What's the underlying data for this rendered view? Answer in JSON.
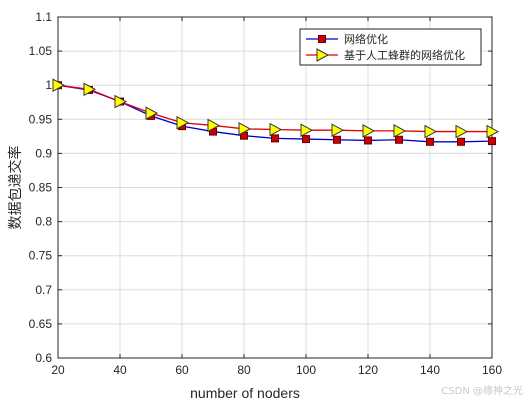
{
  "chart_data": {
    "type": "line",
    "xlabel": "number of noders",
    "ylabel": "数据包递交率",
    "xlim": [
      20,
      160
    ],
    "ylim": [
      0.6,
      1.1
    ],
    "xticks": [
      20,
      40,
      60,
      80,
      100,
      120,
      140,
      160
    ],
    "yticks": [
      0.6,
      0.65,
      0.7,
      0.75,
      0.8,
      0.85,
      0.9,
      0.95,
      1,
      1.05,
      1.1
    ],
    "x": [
      20,
      30,
      40,
      50,
      60,
      70,
      80,
      90,
      100,
      110,
      120,
      130,
      140,
      150,
      160
    ],
    "grid": true,
    "legend_position": "top-right",
    "series": [
      {
        "name": "网络优化",
        "color": "#0000cc",
        "marker": "square",
        "marker_color": "#cc0000",
        "values": [
          1.0,
          0.993,
          0.976,
          0.955,
          0.94,
          0.932,
          0.926,
          0.922,
          0.921,
          0.92,
          0.919,
          0.92,
          0.917,
          0.917,
          0.918
        ]
      },
      {
        "name": "基于人工蜂群的网络优化",
        "color": "#dd0000",
        "marker": "triangle-right",
        "marker_color": "#ffff00",
        "values": [
          1.0,
          0.994,
          0.976,
          0.959,
          0.945,
          0.941,
          0.936,
          0.935,
          0.934,
          0.934,
          0.933,
          0.933,
          0.932,
          0.932,
          0.932
        ]
      }
    ]
  },
  "watermark": "CSDN @缘神之光"
}
